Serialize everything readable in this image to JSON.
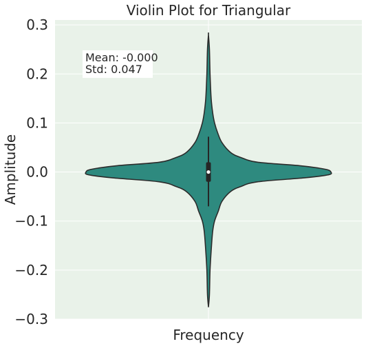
{
  "chart_data": {
    "type": "violin",
    "title": "Violin Plot for Triangular",
    "xlabel": "Frequency",
    "ylabel": "Amplitude",
    "ylim": [
      -0.3,
      0.31
    ],
    "yticks": [
      -0.3,
      -0.2,
      -0.1,
      0.0,
      0.1,
      0.2,
      0.3
    ],
    "ytick_labels": [
      "−0.3",
      "−0.2",
      "−0.1",
      "0.0",
      "0.1",
      "0.2",
      "0.3"
    ],
    "grid": true,
    "series": [
      {
        "min": -0.275,
        "max": 0.28,
        "q1": -0.02,
        "median": 0.0,
        "q3": 0.02,
        "whisker_low": -0.07,
        "whisker_high": 0.072,
        "density_profile": [
          [
            -0.275,
            0.0
          ],
          [
            -0.25,
            0.008
          ],
          [
            -0.2,
            0.013
          ],
          [
            -0.15,
            0.025
          ],
          [
            -0.12,
            0.035
          ],
          [
            -0.1,
            0.05
          ],
          [
            -0.08,
            0.08
          ],
          [
            -0.06,
            0.11
          ],
          [
            -0.04,
            0.18
          ],
          [
            -0.03,
            0.26
          ],
          [
            -0.02,
            0.4
          ],
          [
            -0.012,
            0.78
          ],
          [
            -0.007,
            0.95
          ],
          [
            -0.004,
            1.0
          ],
          [
            0.0,
            1.0
          ],
          [
            0.004,
            0.98
          ],
          [
            0.008,
            0.9
          ],
          [
            0.013,
            0.74
          ],
          [
            0.02,
            0.4
          ],
          [
            0.03,
            0.26
          ],
          [
            0.04,
            0.18
          ],
          [
            0.06,
            0.11
          ],
          [
            0.08,
            0.075
          ],
          [
            0.1,
            0.05
          ],
          [
            0.12,
            0.035
          ],
          [
            0.15,
            0.022
          ],
          [
            0.2,
            0.013
          ],
          [
            0.25,
            0.008
          ],
          [
            0.28,
            0.0
          ]
        ]
      }
    ],
    "stats": {
      "mean_text": "Mean: -0.000",
      "std_text": "Std: 0.047"
    },
    "colors": {
      "violin_fill": "#2e8a7f",
      "plot_background": "#e9f2e9",
      "grid": "#ffffff",
      "edge": "#2b2b2b"
    }
  }
}
